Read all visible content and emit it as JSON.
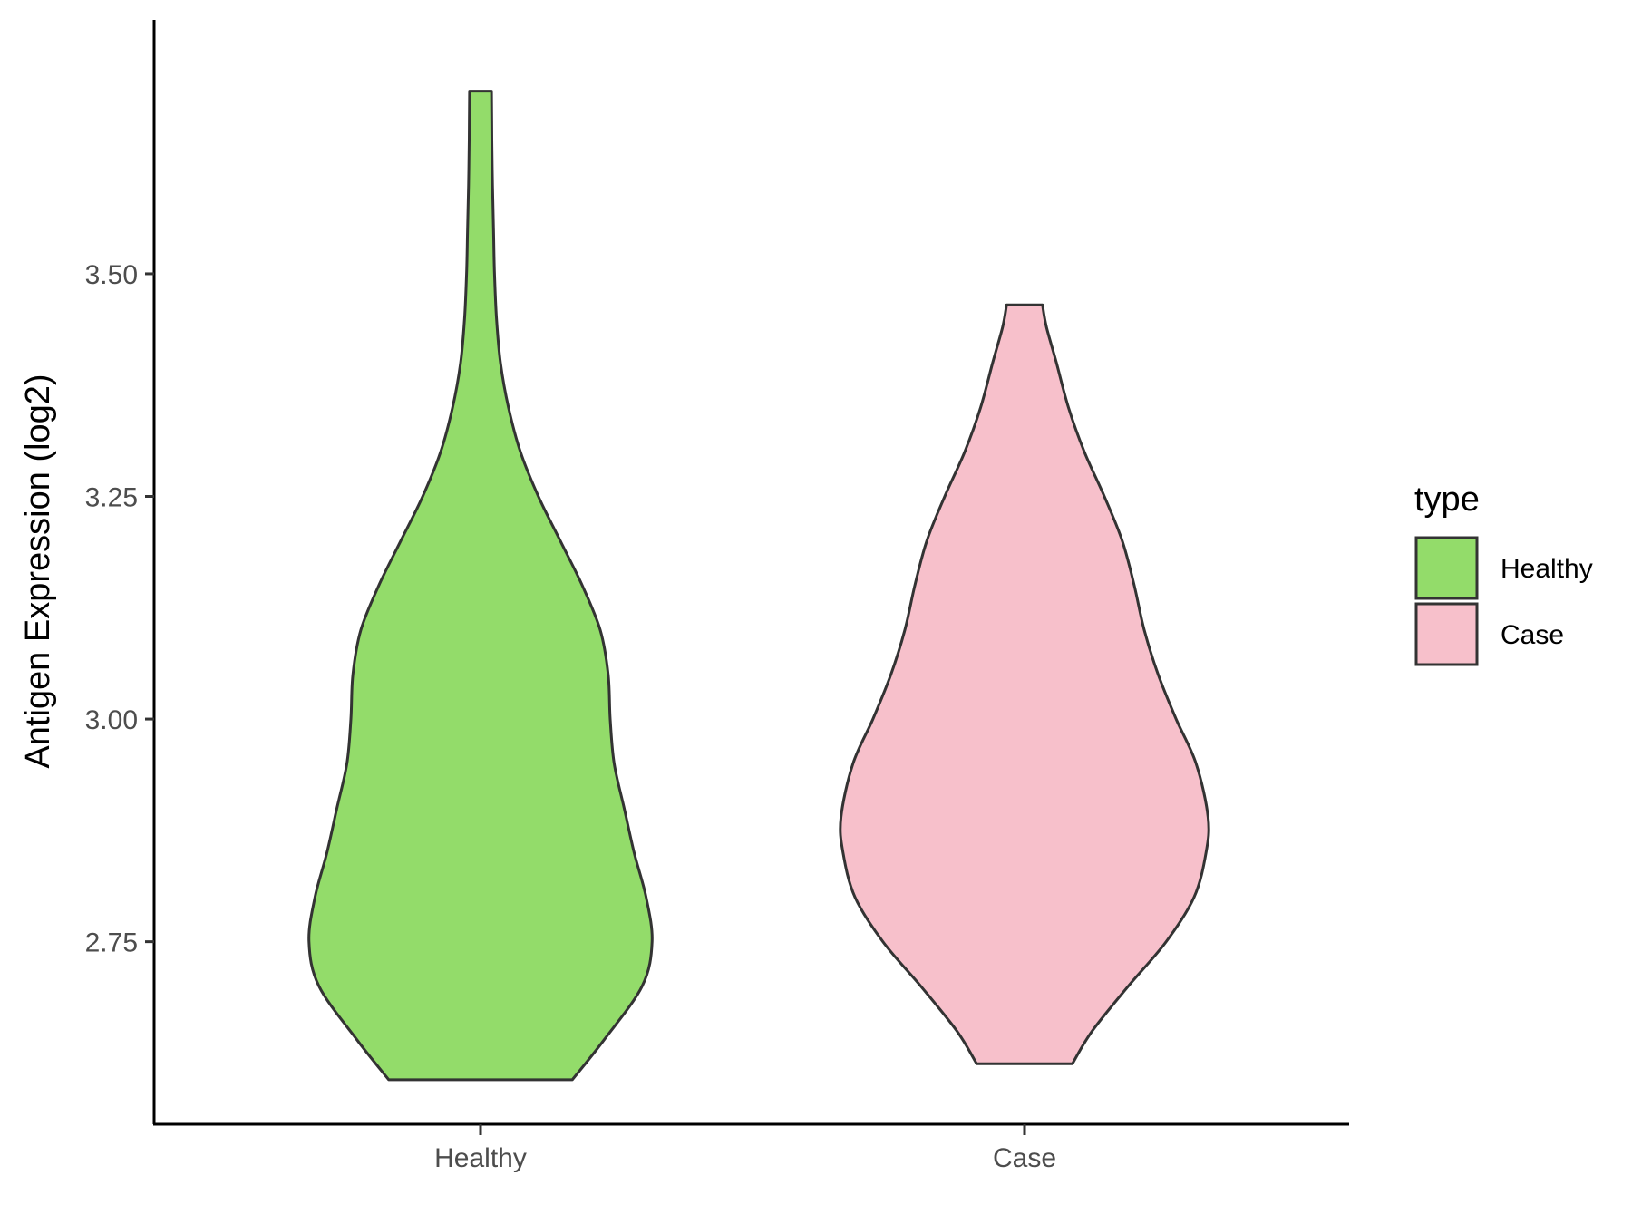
{
  "chart_data": {
    "type": "violin",
    "categories": [
      "Healthy",
      "Case"
    ],
    "ylabel": "Antigen Expression (log2)",
    "xlabel": "",
    "ylim": [
      2.545,
      3.785
    ],
    "yticks": [
      2.75,
      3.0,
      3.25,
      3.5
    ],
    "ytick_labels": [
      "2.75",
      "3.00",
      "3.25",
      "3.50"
    ],
    "grid": false,
    "legend": {
      "title": "type",
      "position": "right",
      "entries": [
        "Healthy",
        "Case"
      ]
    },
    "colors": {
      "Healthy": "#93dc6a",
      "Case": "#f7c0cb",
      "outline": "#333333"
    },
    "series": [
      {
        "name": "Healthy",
        "min": 2.595,
        "max": 3.705,
        "profile": [
          [
            2.595,
            0.46
          ],
          [
            2.64,
            0.62
          ],
          [
            2.7,
            0.81
          ],
          [
            2.75,
            0.86
          ],
          [
            2.8,
            0.83
          ],
          [
            2.85,
            0.77
          ],
          [
            2.9,
            0.72
          ],
          [
            2.95,
            0.67
          ],
          [
            3.0,
            0.65
          ],
          [
            3.05,
            0.64
          ],
          [
            3.1,
            0.6
          ],
          [
            3.15,
            0.51
          ],
          [
            3.2,
            0.4
          ],
          [
            3.25,
            0.29
          ],
          [
            3.3,
            0.2
          ],
          [
            3.35,
            0.14
          ],
          [
            3.4,
            0.1
          ],
          [
            3.45,
            0.08
          ],
          [
            3.5,
            0.07
          ],
          [
            3.55,
            0.065
          ],
          [
            3.6,
            0.06
          ],
          [
            3.65,
            0.057
          ],
          [
            3.705,
            0.055
          ]
        ]
      },
      {
        "name": "Case",
        "min": 2.613,
        "max": 3.465,
        "profile": [
          [
            2.613,
            0.24
          ],
          [
            2.65,
            0.34
          ],
          [
            2.7,
            0.52
          ],
          [
            2.75,
            0.71
          ],
          [
            2.8,
            0.85
          ],
          [
            2.85,
            0.91
          ],
          [
            2.89,
            0.92
          ],
          [
            2.95,
            0.86
          ],
          [
            3.0,
            0.76
          ],
          [
            3.05,
            0.67
          ],
          [
            3.1,
            0.6
          ],
          [
            3.15,
            0.55
          ],
          [
            3.2,
            0.49
          ],
          [
            3.25,
            0.4
          ],
          [
            3.3,
            0.3
          ],
          [
            3.35,
            0.22
          ],
          [
            3.4,
            0.16
          ],
          [
            3.44,
            0.11
          ],
          [
            3.465,
            0.09
          ]
        ]
      }
    ]
  }
}
